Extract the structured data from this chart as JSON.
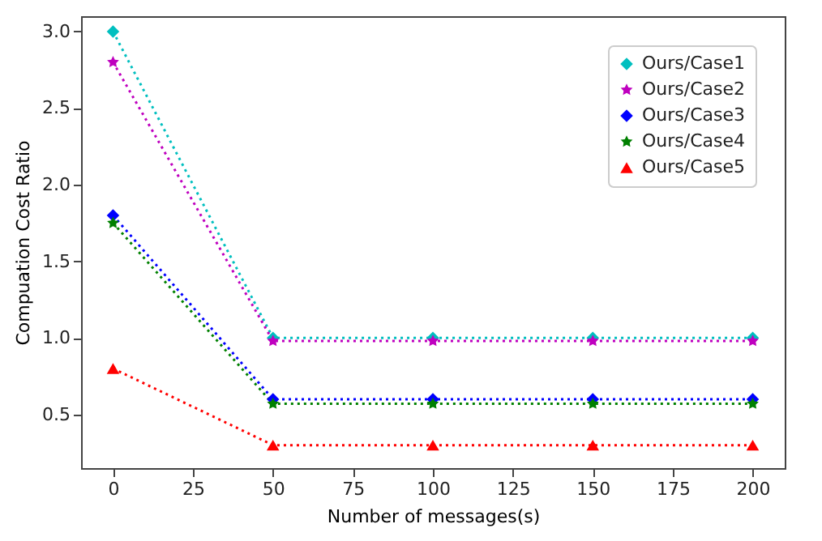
{
  "chart_data": {
    "type": "line",
    "xlabel": "Number of messages(s)",
    "ylabel": "Compuation Cost Ratio",
    "x": [
      0,
      50,
      100,
      150,
      200
    ],
    "series": [
      {
        "name": "Ours/Case1",
        "color": "#00bfbf",
        "marker": "diamond",
        "values": [
          3.0,
          1.0,
          1.0,
          1.0,
          1.0
        ]
      },
      {
        "name": "Ours/Case2",
        "color": "#bf00bf",
        "marker": "star",
        "values": [
          2.8,
          0.98,
          0.98,
          0.98,
          0.98
        ]
      },
      {
        "name": "Ours/Case3",
        "color": "#0000ff",
        "marker": "diamond",
        "values": [
          1.8,
          0.6,
          0.6,
          0.6,
          0.6
        ]
      },
      {
        "name": "Ours/Case4",
        "color": "#008000",
        "marker": "star",
        "values": [
          1.75,
          0.57,
          0.57,
          0.57,
          0.57
        ]
      },
      {
        "name": "Ours/Case5",
        "color": "#ff0000",
        "marker": "triangle",
        "values": [
          0.8,
          0.3,
          0.3,
          0.3,
          0.3
        ]
      }
    ],
    "xlim": [
      -10,
      210
    ],
    "xticks": [
      0,
      25,
      50,
      75,
      100,
      125,
      150,
      175,
      200
    ],
    "ylim": [
      0.15,
      3.1
    ],
    "yticks": [
      0.5,
      {
        "value": 1,
        "label": "1.0"
      },
      1.5,
      {
        "value": 2,
        "label": "2.0"
      },
      2.5,
      {
        "value": 3,
        "label": "3.0"
      }
    ],
    "grid": false,
    "legend": "top right",
    "line_style": "dotted"
  }
}
